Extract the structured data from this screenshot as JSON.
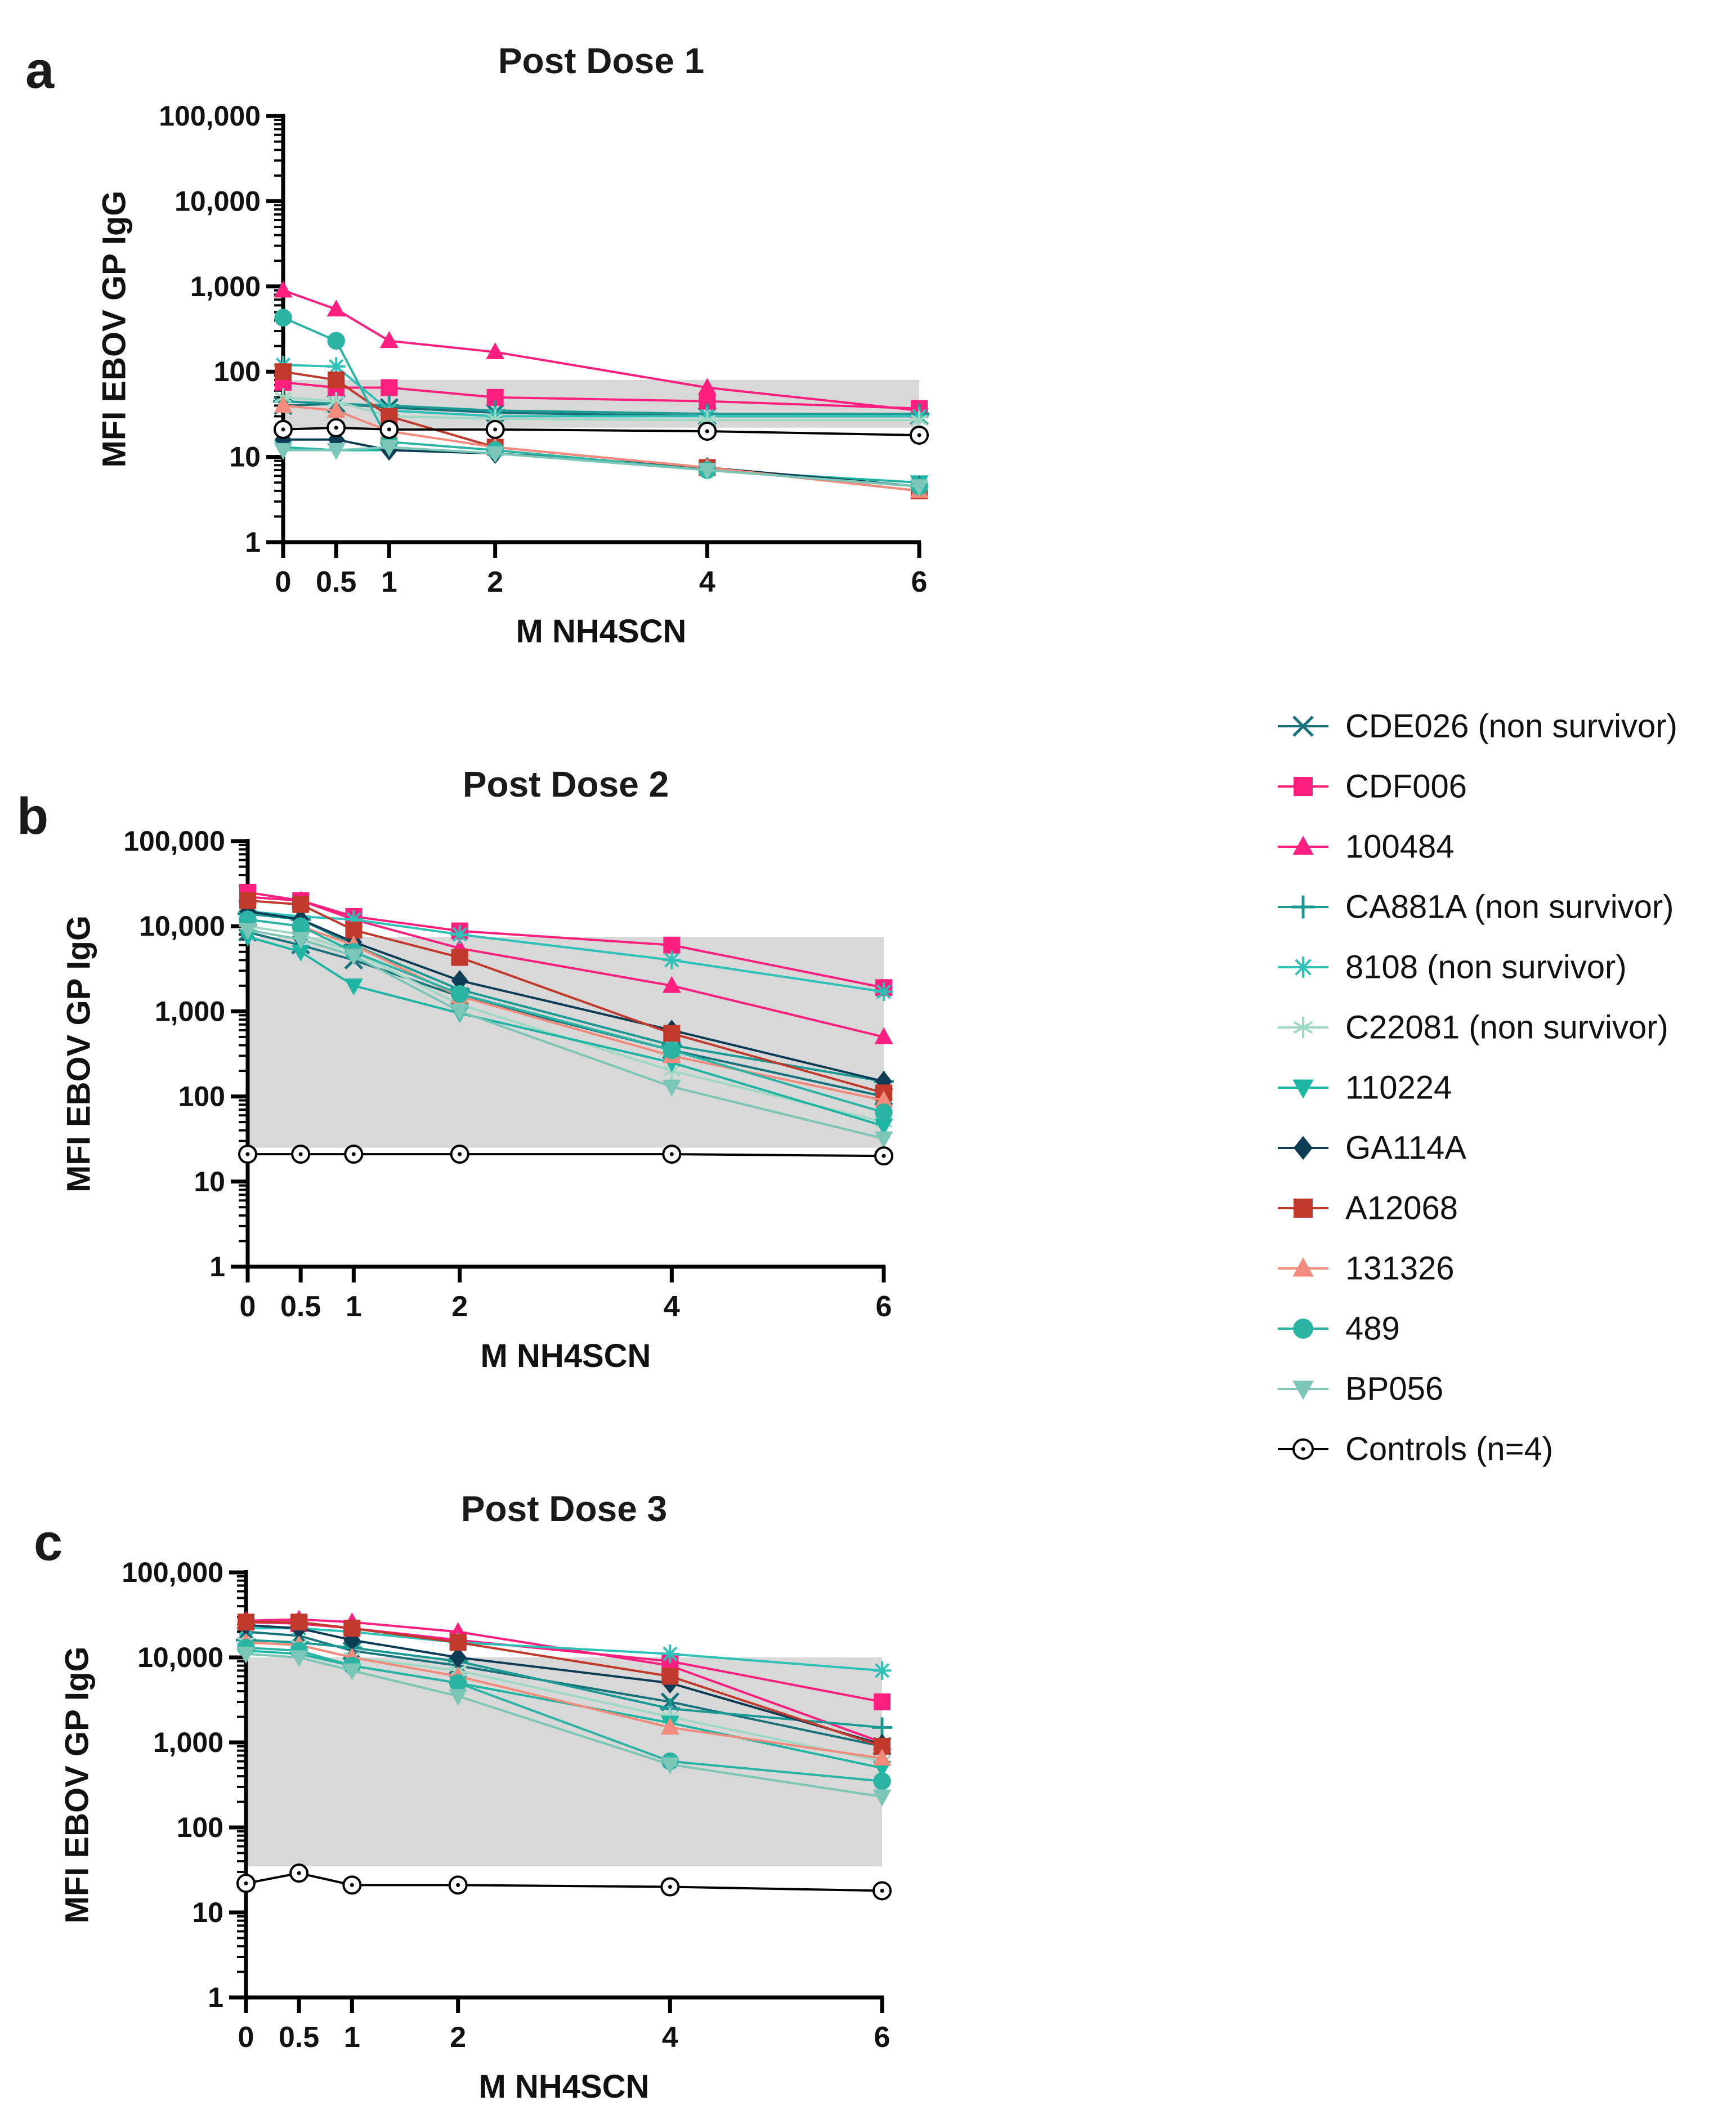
{
  "x_values": [
    0,
    0.5,
    1,
    2,
    4,
    6
  ],
  "panels": [
    {
      "label": "a",
      "title": "Post Dose 1",
      "xlabel": "M NH4SCN",
      "ylabel": "MFI EBOV GP IgG",
      "xticks": [
        "0",
        "0.5",
        "1",
        "2",
        "4",
        "6"
      ],
      "yticks": [
        "1",
        "10",
        "100",
        "1,000",
        "10,000",
        "100,000"
      ]
    },
    {
      "label": "b",
      "title": "Post Dose 2",
      "xlabel": "M NH4SCN",
      "ylabel": "MFI EBOV GP IgG",
      "xticks": [
        "0",
        "0.5",
        "1",
        "2",
        "4",
        "6"
      ],
      "yticks": [
        "1",
        "10",
        "100",
        "1,000",
        "10,000",
        "100,000"
      ]
    },
    {
      "label": "c",
      "title": "Post Dose 3",
      "xlabel": "M NH4SCN",
      "ylabel": "MFI EBOV GP IgG",
      "xticks": [
        "0",
        "0.5",
        "1",
        "2",
        "4",
        "6"
      ],
      "yticks": [
        "1",
        "10",
        "100",
        "1,000",
        "10,000",
        "100,000"
      ]
    }
  ],
  "legend": [
    {
      "name": "CDE026 (non survivor)",
      "color": "#17727a",
      "marker": "x"
    },
    {
      "name": "CDF006",
      "color": "#ff1f7f",
      "marker": "square"
    },
    {
      "name": "100484",
      "color": "#ff1f7f",
      "marker": "triangle"
    },
    {
      "name": "CA881A (non survivor)",
      "color": "#1a9a93",
      "marker": "plus"
    },
    {
      "name": "8108 (non survivor)",
      "color": "#2ec1b8",
      "marker": "star"
    },
    {
      "name": "C22081 (non survivor)",
      "color": "#9fd8c4",
      "marker": "star6"
    },
    {
      "name": "110224",
      "color": "#1fb5a5",
      "marker": "triangle-down"
    },
    {
      "name": "GA114A",
      "color": "#0d3c55",
      "marker": "diamond"
    },
    {
      "name": "A12068",
      "color": "#c0392b",
      "marker": "square"
    },
    {
      "name": "131326",
      "color": "#f28b7b",
      "marker": "triangle"
    },
    {
      "name": "489",
      "color": "#2bb3a3",
      "marker": "circle"
    },
    {
      "name": "BP056",
      "color": "#7cc6b7",
      "marker": "triangle-down"
    },
    {
      "name": "Controls (n=4)",
      "color": "#000000",
      "marker": "open-circle"
    }
  ],
  "chart_data": [
    {
      "type": "line",
      "title": "Post Dose 1",
      "xlabel": "M NH4SCN",
      "ylabel": "MFI EBOV GP IgG",
      "yscale": "log",
      "ylim": [
        1,
        100000
      ],
      "xlim": [
        0,
        6
      ],
      "x": [
        0,
        0.5,
        1,
        2,
        4,
        6
      ],
      "shaded_band": [
        22,
        80
      ],
      "series": [
        {
          "name": "CDE026 (non survivor)",
          "values": [
            40,
            42,
            38,
            33,
            30,
            30
          ]
        },
        {
          "name": "CDF006",
          "values": [
            75,
            65,
            65,
            50,
            45,
            37
          ]
        },
        {
          "name": "100484",
          "values": [
            900,
            540,
            230,
            170,
            65,
            35
          ]
        },
        {
          "name": "CA881A (non survivor)",
          "values": [
            45,
            42,
            40,
            35,
            32,
            32
          ]
        },
        {
          "name": "8108 (non survivor)",
          "values": [
            120,
            115,
            35,
            30,
            30,
            30
          ]
        },
        {
          "name": "C22081 (non survivor)",
          "values": [
            50,
            45,
            30,
            28,
            27,
            27
          ]
        },
        {
          "name": "110224",
          "values": [
            13,
            12,
            12,
            11,
            7,
            5
          ]
        },
        {
          "name": "GA114A",
          "values": [
            16,
            16,
            12,
            11,
            7.5,
            4.5
          ]
        },
        {
          "name": "A12068",
          "values": [
            100,
            80,
            30,
            13,
            7.5,
            4
          ]
        },
        {
          "name": "131326",
          "values": [
            40,
            35,
            20,
            13,
            7.5,
            4
          ]
        },
        {
          "name": "489",
          "values": [
            430,
            230,
            15,
            12,
            7,
            4.5
          ]
        },
        {
          "name": "BP056",
          "values": [
            12,
            12,
            13,
            11,
            7,
            4.5
          ]
        },
        {
          "name": "Controls (n=4)",
          "values": [
            21,
            22,
            21,
            21,
            20,
            18
          ]
        }
      ]
    },
    {
      "type": "line",
      "title": "Post Dose 2",
      "xlabel": "M NH4SCN",
      "ylabel": "MFI EBOV GP IgG",
      "yscale": "log",
      "ylim": [
        1,
        100000
      ],
      "xlim": [
        0,
        6
      ],
      "x": [
        0,
        0.5,
        1,
        2,
        4,
        6
      ],
      "shaded_band": [
        25,
        7500
      ],
      "series": [
        {
          "name": "CDE026 (non survivor)",
          "values": [
            8500,
            6000,
            4000,
            1500,
            350,
            100
          ]
        },
        {
          "name": "CDF006",
          "values": [
            25000,
            20000,
            13000,
            8800,
            6000,
            1900
          ]
        },
        {
          "name": "100484",
          "values": [
            22000,
            20000,
            12000,
            5500,
            2000,
            500
          ]
        },
        {
          "name": "CA881A (non survivor)",
          "values": [
            14000,
            12000,
            6000,
            1800,
            400,
            150
          ]
        },
        {
          "name": "8108 (non survivor)",
          "values": [
            15000,
            13000,
            12000,
            8000,
            4000,
            1700
          ]
        },
        {
          "name": "C22081 (non survivor)",
          "values": [
            10000,
            8000,
            5000,
            1200,
            200,
            50
          ]
        },
        {
          "name": "110224",
          "values": [
            7500,
            5000,
            2000,
            950,
            250,
            45
          ]
        },
        {
          "name": "GA114A",
          "values": [
            15000,
            12000,
            6500,
            2300,
            600,
            150
          ]
        },
        {
          "name": "A12068",
          "values": [
            20000,
            18000,
            9000,
            4300,
            550,
            110
          ]
        },
        {
          "name": "131326",
          "values": [
            12000,
            10000,
            6000,
            1500,
            300,
            90
          ]
        },
        {
          "name": "489",
          "values": [
            12000,
            10000,
            5000,
            1600,
            350,
            65
          ]
        },
        {
          "name": "BP056",
          "values": [
            9000,
            7000,
            4500,
            1000,
            130,
            32
          ]
        },
        {
          "name": "Controls (n=4)",
          "values": [
            21,
            21,
            21,
            21,
            21,
            20
          ]
        }
      ]
    },
    {
      "type": "line",
      "title": "Post Dose 3",
      "xlabel": "M NH4SCN",
      "ylabel": "MFI EBOV GP IgG",
      "yscale": "log",
      "ylim": [
        1,
        100000
      ],
      "xlim": [
        0,
        6
      ],
      "x": [
        0,
        0.5,
        1,
        2,
        4,
        6
      ],
      "shaded_band": [
        35,
        10000
      ],
      "series": [
        {
          "name": "CDE026 (non survivor)",
          "values": [
            20000,
            18000,
            12000,
            8000,
            3000,
            900
          ]
        },
        {
          "name": "CDF006",
          "values": [
            26000,
            25000,
            22000,
            16000,
            9000,
            3000
          ]
        },
        {
          "name": "100484",
          "values": [
            27000,
            28000,
            26000,
            20000,
            8000,
            1000
          ]
        },
        {
          "name": "CA881A (non survivor)",
          "values": [
            16000,
            15000,
            13000,
            9000,
            2500,
            1500
          ]
        },
        {
          "name": "8108 (non survivor)",
          "values": [
            22000,
            22000,
            20000,
            15000,
            11000,
            7000
          ]
        },
        {
          "name": "C22081 (non survivor)",
          "values": [
            15000,
            14000,
            10000,
            7000,
            2000,
            600
          ]
        },
        {
          "name": "110224",
          "values": [
            12000,
            11000,
            8000,
            5000,
            1700,
            500
          ]
        },
        {
          "name": "GA114A",
          "values": [
            24000,
            22000,
            16000,
            10000,
            5000,
            950
          ]
        },
        {
          "name": "A12068",
          "values": [
            26000,
            26000,
            22000,
            15000,
            6000,
            900
          ]
        },
        {
          "name": "131326",
          "values": [
            15000,
            14000,
            10000,
            6000,
            1500,
            650
          ]
        },
        {
          "name": "489",
          "values": [
            13000,
            12000,
            8000,
            5000,
            600,
            350
          ]
        },
        {
          "name": "BP056",
          "values": [
            11000,
            10000,
            7000,
            3500,
            550,
            230
          ]
        },
        {
          "name": "Controls (n=4)",
          "values": [
            22,
            29,
            21,
            21,
            20,
            18
          ]
        }
      ]
    }
  ]
}
